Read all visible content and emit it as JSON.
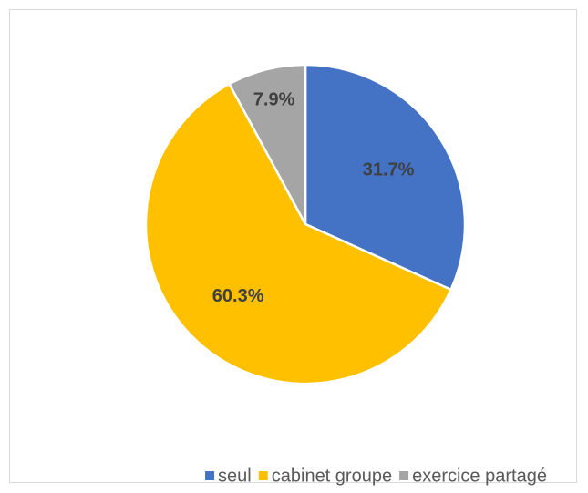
{
  "chart_data": {
    "type": "pie",
    "categories": [
      "seul",
      "cabinet groupe",
      "exercice partagé"
    ],
    "values": [
      31.7,
      60.3,
      7.9
    ],
    "value_labels": [
      "31.7%",
      "60.3%",
      "7.9%"
    ],
    "colors": [
      "#4472c4",
      "#ffc000",
      "#a5a5a5"
    ],
    "legend": "bottom"
  }
}
